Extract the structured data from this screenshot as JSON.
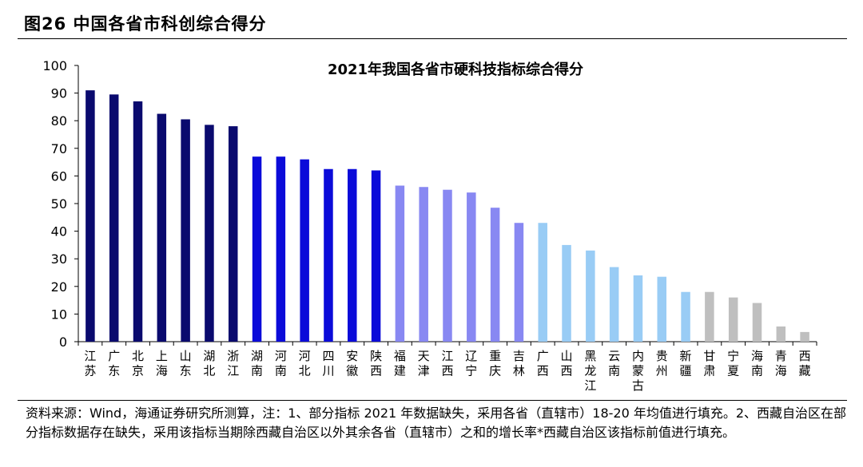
{
  "figure": {
    "title": "图26 中国各省市科创综合得分",
    "source": "资料来源：Wind，海通证券研究所测算，注：1、部分指标 2021 年数据缺失，采用各省（直辖市）18-20 年均值进行填充。2、西藏自治区在部分指标数据存在缺失，采用该指标当期除西藏自治区以外其余各省（直辖市）之和的增长率*西藏自治区该指标前值进行填充。"
  },
  "chart_data": {
    "type": "bar",
    "title": "2021年我国各省市硬科技指标综合得分",
    "xlabel": "",
    "ylabel": "",
    "ylim": [
      0,
      100
    ],
    "yticks": [
      0,
      10,
      20,
      30,
      40,
      50,
      60,
      70,
      80,
      90,
      100
    ],
    "grid": false,
    "categories": [
      "江苏",
      "广东",
      "北京",
      "上海",
      "山东",
      "湖北",
      "浙江",
      "湖南",
      "河南",
      "河北",
      "四川",
      "安徽",
      "陕西",
      "福建",
      "天津",
      "江西",
      "辽宁",
      "重庆",
      "吉林",
      "广西",
      "山西",
      "黑龙江",
      "云南",
      "内蒙古",
      "贵州",
      "新疆",
      "甘肃",
      "宁夏",
      "海南",
      "青海",
      "西藏"
    ],
    "values": [
      91,
      89.5,
      87,
      82.5,
      80.5,
      78.5,
      78,
      67,
      67,
      66,
      62.5,
      62.5,
      62,
      56.5,
      56,
      55,
      54,
      48.5,
      43,
      43,
      35,
      33,
      27,
      24,
      23.5,
      18,
      18,
      16,
      14,
      5.5,
      3.5
    ],
    "colors": [
      "#0a0a6e",
      "#0a0a6e",
      "#0a0a6e",
      "#0a0a6e",
      "#0a0a6e",
      "#0a0a6e",
      "#0a0a6e",
      "#0b0bd9",
      "#0b0bd9",
      "#0b0bd9",
      "#0b0bd9",
      "#0b0bd9",
      "#0b0bd9",
      "#8888f2",
      "#8888f2",
      "#8888f2",
      "#8888f2",
      "#8888f2",
      "#8888f2",
      "#99ccf5",
      "#99ccf5",
      "#99ccf5",
      "#99ccf5",
      "#99ccf5",
      "#99ccf5",
      "#99ccf5",
      "#bfbfbf",
      "#bfbfbf",
      "#bfbfbf",
      "#bfbfbf",
      "#bfbfbf"
    ]
  }
}
